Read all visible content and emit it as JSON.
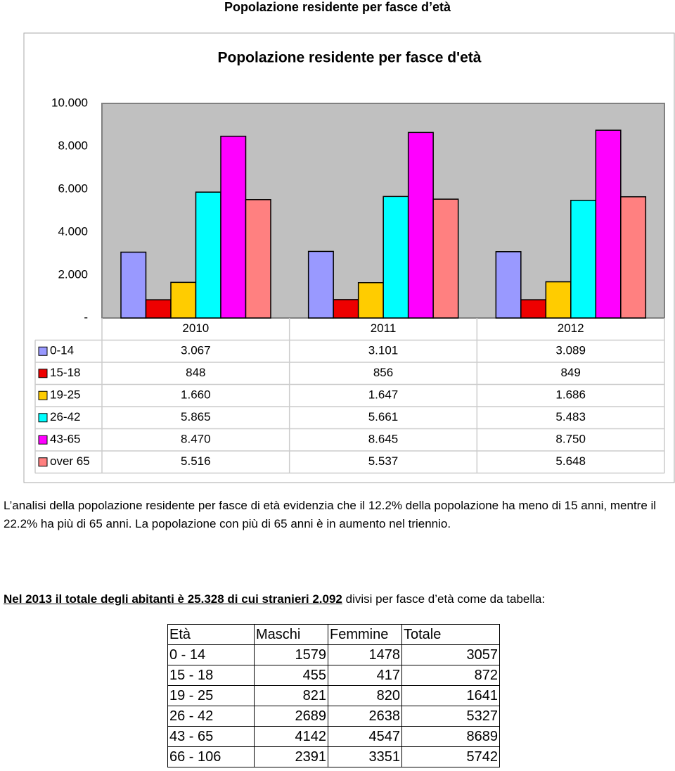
{
  "header": {
    "title": "Popolazione residente per fasce d’età"
  },
  "chart_data": {
    "type": "bar",
    "title": "Popolazione residente per fasce d'età",
    "categories": [
      "2010",
      "2011",
      "2012"
    ],
    "series": [
      {
        "name": "0-14",
        "color": "#9999ff",
        "values": [
          3067,
          3101,
          3089
        ],
        "value_labels": [
          "3.067",
          "3.101",
          "3.089"
        ]
      },
      {
        "name": "15-18",
        "color": "#ee0000",
        "values": [
          848,
          856,
          849
        ]
      },
      {
        "name": "19-25",
        "color": "#ffcc00",
        "values": [
          1660,
          1647,
          1686
        ],
        "value_labels": [
          "1.660",
          "1.647",
          "1.686"
        ]
      },
      {
        "name": "26-42",
        "color": "#00ffff",
        "values": [
          5865,
          5661,
          5483
        ],
        "value_labels": [
          "5.865",
          "5.661",
          "5.483"
        ]
      },
      {
        "name": "43-65",
        "color": "#ff00ff",
        "values": [
          8470,
          8645,
          8750
        ],
        "value_labels": [
          "8.470",
          "8.645",
          "8.750"
        ]
      },
      {
        "name": "over 65",
        "color": "#ff8080",
        "values": [
          5516,
          5537,
          5648
        ],
        "value_labels": [
          "5.516",
          "5.537",
          "5.648"
        ]
      }
    ],
    "ylim": [
      0,
      10000
    ],
    "yticks": [
      {
        "value": 0,
        "label": "-"
      },
      {
        "value": 2000,
        "label": "2.000"
      },
      {
        "value": 4000,
        "label": "4.000"
      },
      {
        "value": 6000,
        "label": "6.000"
      },
      {
        "value": 8000,
        "label": "8.000"
      },
      {
        "value": 10000,
        "label": "10.000"
      }
    ],
    "grid": false
  },
  "paragraph": "L’analisi della popolazione residente per fasce di età evidenzia che il 12.2% della popolazione ha meno di 15 anni, mentre il 22.2% ha più di 65 anni. La popolazione con più di 65 anni è in aumento nel triennio.",
  "summary": {
    "bold": "Nel 2013 il totale degli abitanti è 25.328 di cui stranieri 2.092",
    "text": "divisi per fasce d’età come da tabella:"
  },
  "table": {
    "header": [
      "Età",
      "Maschi",
      "Femmine",
      "Totale"
    ],
    "rows": [
      [
        "0 - 14",
        1579,
        1478,
        3057
      ],
      [
        "15 - 18",
        455,
        417,
        872
      ],
      [
        "19 - 25",
        821,
        820,
        1641
      ],
      [
        "26 - 42",
        2689,
        2638,
        5327
      ],
      [
        "43 - 65",
        4142,
        4547,
        8689
      ],
      [
        "66 - 106",
        2391,
        3351,
        5742
      ]
    ]
  }
}
